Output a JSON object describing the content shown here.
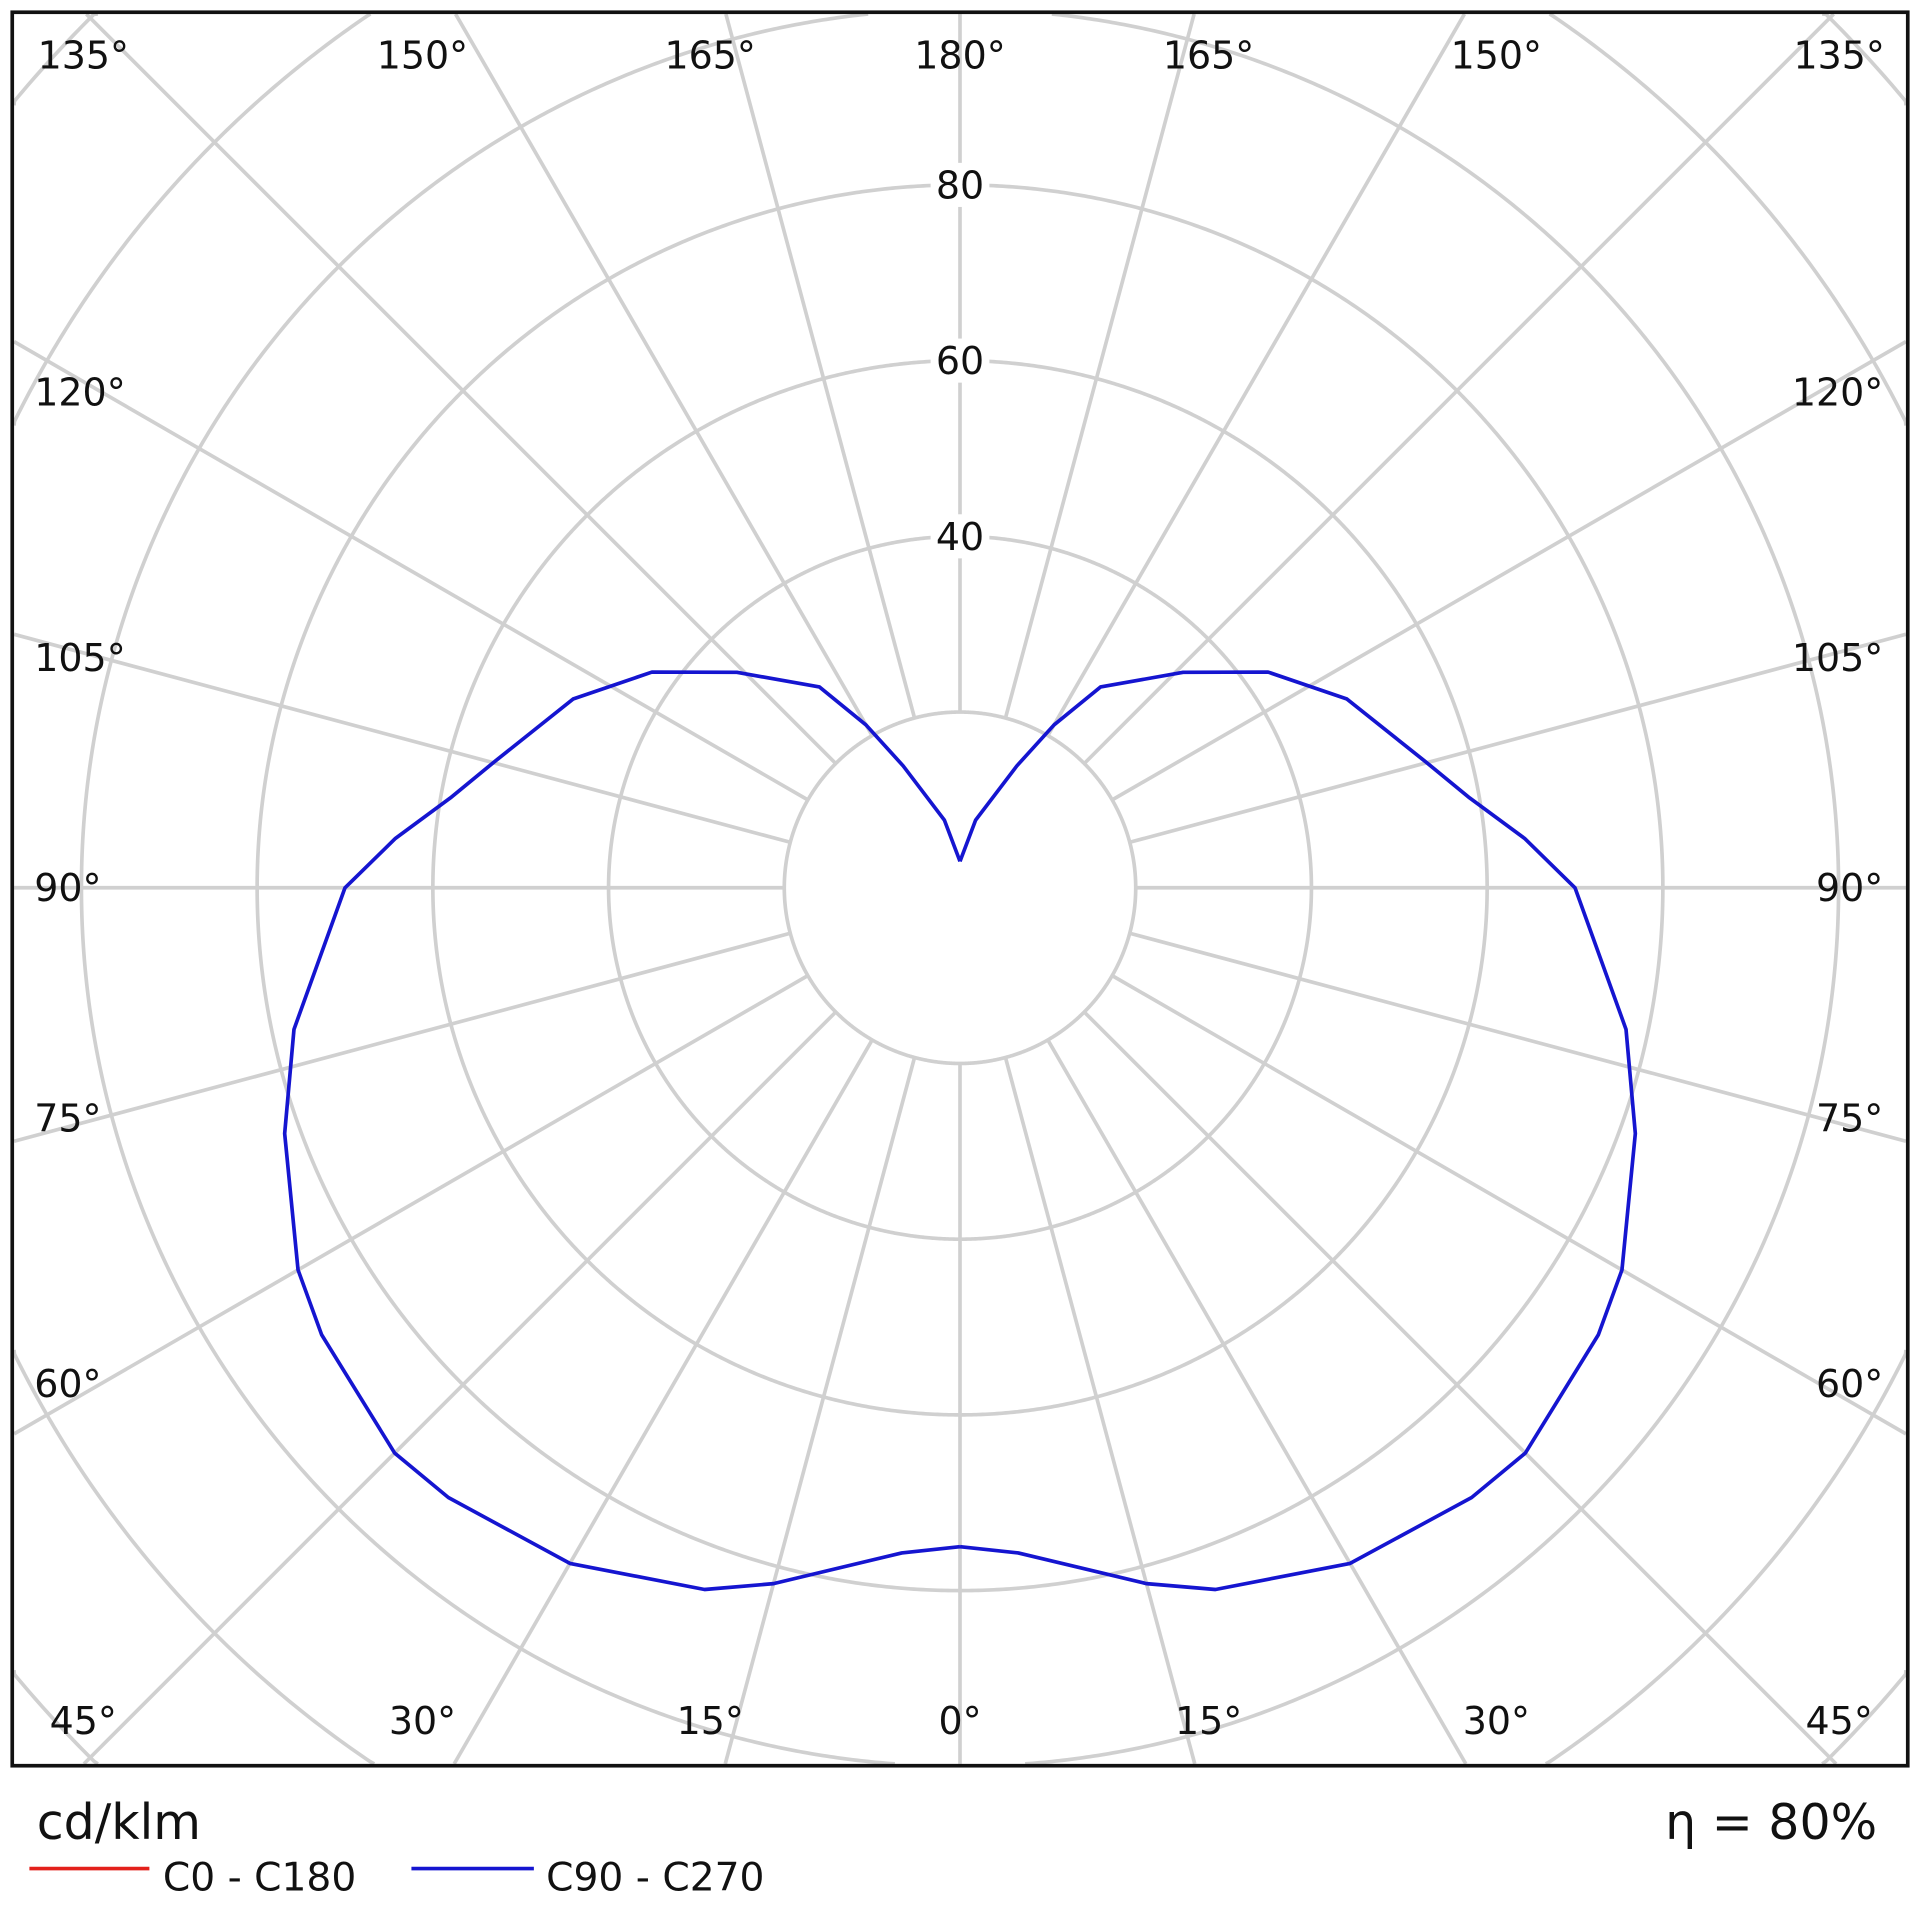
{
  "chart_data": {
    "type": "polar-line",
    "unit_label": "cd/klm",
    "efficiency_label": "η = 80%",
    "radial_ticks": [
      20,
      40,
      60,
      80,
      100,
      120,
      140
    ],
    "radial_tick_labels": [
      "40",
      "60",
      "80"
    ],
    "angle_step_deg": 15,
    "angle_labels": {
      "top": [
        "135°",
        "150°",
        "165°",
        "180°",
        "165°",
        "150°",
        "135°"
      ],
      "left": [
        "120°",
        "105°",
        "90°",
        "75°",
        "60°"
      ],
      "right": [
        "120°",
        "105°",
        "90°",
        "75°",
        "60°"
      ],
      "bottom": [
        "45°",
        "30°",
        "15°",
        "0°",
        "15°",
        "30°",
        "45°"
      ]
    },
    "grid": true,
    "legend": "bottom-left",
    "series": [
      {
        "name": "C0 - C180",
        "color": "#e3201b",
        "gamma_deg": [],
        "values": []
      },
      {
        "name": "C90 - C270",
        "color": "#1515d0",
        "gamma_deg": [
          0,
          5,
          15,
          20,
          30,
          40,
          45,
          55,
          60,
          70,
          78,
          90,
          95,
          100,
          105,
          116,
          125,
          134,
          145,
          150,
          155,
          167,
          180
        ],
        "values": [
          75,
          76,
          82,
          85,
          88.8,
          90.6,
          91,
          88.7,
          87,
          81.8,
          77.5,
          70,
          64.5,
          58.9,
          55,
          49,
          42.8,
          35.3,
          27.9,
          21.4,
          15.3,
          7.9,
          3
        ]
      }
    ]
  }
}
